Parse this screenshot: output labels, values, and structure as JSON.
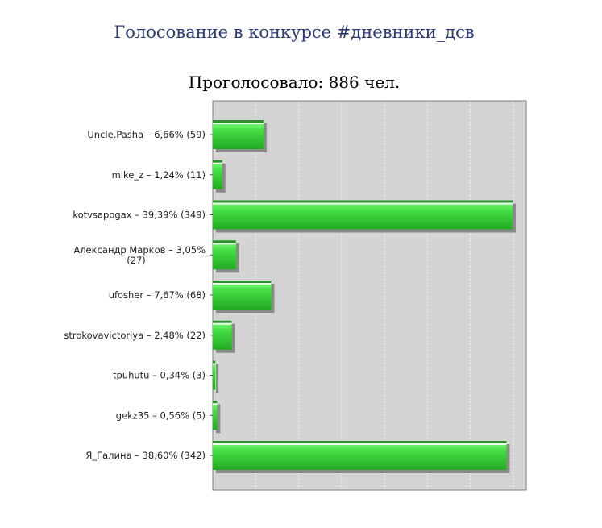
{
  "header": {
    "title": "Голосование в конкурсе #дневники_дсв"
  },
  "chart_data": {
    "type": "bar",
    "orientation": "horizontal",
    "title": "Проголосовало: 886 чел.",
    "categories": [
      [
        "Uncle.Pasha – 6,66% (59)"
      ],
      [
        "mike_z – 1,24% (11)"
      ],
      [
        "kotvsapogax – 39,39% (349)"
      ],
      [
        "Александр Марков – 3,05%",
        "(27)"
      ],
      [
        "ufosher – 7,67% (68)"
      ],
      [
        "strokovavictoriya – 2,48% (22)"
      ],
      [
        "tpuhutu – 0,34% (3)"
      ],
      [
        "gekz35 – 0,56% (5)"
      ],
      [
        "Я_Галина – 38,60% (342)"
      ]
    ],
    "values": [
      59,
      11,
      349,
      27,
      68,
      22,
      3,
      5,
      342
    ],
    "xlim": [
      0,
      365
    ],
    "grid": true,
    "colors": {
      "bar": "#44dd44",
      "bar_light": "#88ff88",
      "bar_dark": "#22aa22",
      "bar_top": "#2d8f2d",
      "shadow": "#8a8a8a",
      "plot_bg": "#d4d4d4",
      "plot_border": "#7f7f7f",
      "grid": "#f2f2f2"
    }
  }
}
